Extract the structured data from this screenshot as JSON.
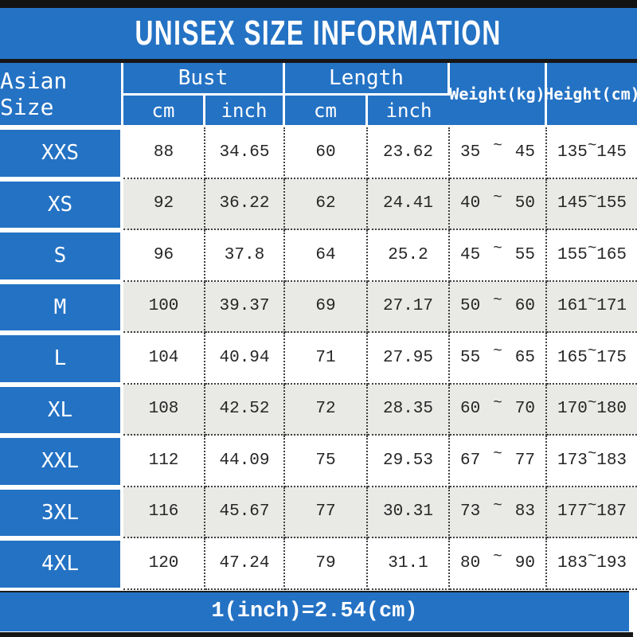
{
  "title": "UNISEX SIZE INFORMATION",
  "labels": {
    "tilde": "~"
  },
  "colors": {
    "accent_blue": "#2472C4",
    "row_alt_gray": "#E9E9E6",
    "bar_black": "#161616"
  },
  "table": {
    "headers": {
      "size": "Asian Size",
      "bust": "Bust",
      "length": "Length",
      "cm": "cm",
      "inch": "inch",
      "weight": "Weight(kg)",
      "height": "Height(cm)"
    },
    "rows": [
      {
        "size": "XXS",
        "bust_cm": "88",
        "bust_in": "34.65",
        "len_cm": "60",
        "len_in": "23.62",
        "weight_min": "35",
        "weight_max": "45",
        "height_min": "135",
        "height_max": "145"
      },
      {
        "size": "XS",
        "bust_cm": "92",
        "bust_in": "36.22",
        "len_cm": "62",
        "len_in": "24.41",
        "weight_min": "40",
        "weight_max": "50",
        "height_min": "145",
        "height_max": "155"
      },
      {
        "size": "S",
        "bust_cm": "96",
        "bust_in": "37.8",
        "len_cm": "64",
        "len_in": "25.2",
        "weight_min": "45",
        "weight_max": "55",
        "height_min": "155",
        "height_max": "165"
      },
      {
        "size": "M",
        "bust_cm": "100",
        "bust_in": "39.37",
        "len_cm": "69",
        "len_in": "27.17",
        "weight_min": "50",
        "weight_max": "60",
        "height_min": "161",
        "height_max": "171"
      },
      {
        "size": "L",
        "bust_cm": "104",
        "bust_in": "40.94",
        "len_cm": "71",
        "len_in": "27.95",
        "weight_min": "55",
        "weight_max": "65",
        "height_min": "165",
        "height_max": "175"
      },
      {
        "size": "XL",
        "bust_cm": "108",
        "bust_in": "42.52",
        "len_cm": "72",
        "len_in": "28.35",
        "weight_min": "60",
        "weight_max": "70",
        "height_min": "170",
        "height_max": "180"
      },
      {
        "size": "XXL",
        "bust_cm": "112",
        "bust_in": "44.09",
        "len_cm": "75",
        "len_in": "29.53",
        "weight_min": "67",
        "weight_max": "77",
        "height_min": "173",
        "height_max": "183"
      },
      {
        "size": "3XL",
        "bust_cm": "116",
        "bust_in": "45.67",
        "len_cm": "77",
        "len_in": "30.31",
        "weight_min": "73",
        "weight_max": "83",
        "height_min": "177",
        "height_max": "187"
      },
      {
        "size": "4XL",
        "bust_cm": "120",
        "bust_in": "47.24",
        "len_cm": "79",
        "len_in": "31.1",
        "weight_min": "80",
        "weight_max": "90",
        "height_min": "183",
        "height_max": "193"
      }
    ]
  },
  "footer": {
    "note": "1(inch)=2.54(cm)"
  }
}
